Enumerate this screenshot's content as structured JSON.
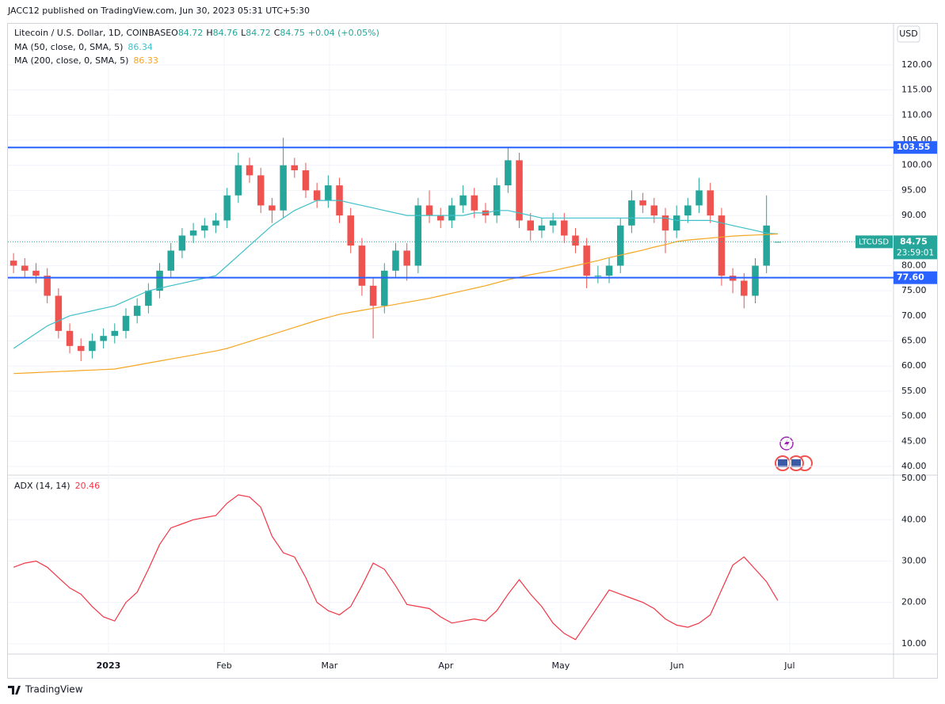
{
  "publisher": "JACC12 published on TradingView.com, Jun 30, 2023 05:31 UTC+5:30",
  "brand": "TradingView",
  "chart_data": [
    {
      "type": "candlestick",
      "title": "Litecoin / U.S. Dollar, 1D, COINBASE",
      "ohlc_prefixes": [
        "O",
        "H",
        "L",
        "C"
      ],
      "change": "+0.04 (+0.05%)",
      "currency": "USD",
      "up_color": "#26a69a",
      "down_color": "#ef5350",
      "candles": {
        "open": [
          81,
          80,
          79,
          78,
          74,
          67,
          64,
          63,
          65,
          66,
          67,
          70,
          72,
          75,
          79,
          83,
          86,
          87,
          88,
          89,
          94,
          100,
          98,
          92,
          91,
          100,
          99,
          95,
          93,
          96,
          90,
          84,
          76,
          72,
          79,
          83,
          80,
          92,
          90,
          89,
          92,
          94,
          91,
          90,
          96,
          101,
          89,
          87,
          88,
          89,
          86,
          84,
          78,
          78,
          80,
          88,
          93,
          92,
          90,
          87,
          90,
          92,
          95,
          90,
          78,
          77,
          74,
          80,
          84.72
        ],
        "high": [
          82.5,
          81.5,
          80.5,
          79.5,
          75.5,
          68.5,
          65.5,
          66.5,
          67.5,
          68.5,
          71.5,
          73.5,
          76.5,
          80.5,
          84.5,
          87.5,
          88.5,
          89.5,
          90.5,
          95.5,
          102.5,
          101.5,
          99.5,
          93.5,
          105.5,
          101.5,
          100.5,
          96.5,
          98,
          97.5,
          91.5,
          85.5,
          77.5,
          80.5,
          84.5,
          84.5,
          93.5,
          95,
          91.5,
          93.5,
          96,
          95.5,
          92.5,
          97.5,
          103.5,
          102.5,
          90.5,
          89.5,
          90.5,
          90.5,
          87.5,
          85.5,
          80,
          81.5,
          89.5,
          95,
          94.5,
          93.5,
          91.5,
          92,
          93.5,
          97.5,
          96.5,
          91.5,
          79.5,
          78.5,
          81.5,
          94,
          84.76
        ],
        "low": [
          78.5,
          77.5,
          76.5,
          72.5,
          65.5,
          62.5,
          61,
          61.5,
          63.5,
          64.5,
          65.5,
          68.5,
          70.5,
          73.5,
          77.5,
          81.5,
          84.5,
          85.5,
          86.5,
          87.5,
          92.5,
          96.5,
          90.5,
          88.5,
          89.5,
          97.5,
          93.5,
          91.5,
          91.5,
          88.5,
          82.5,
          74,
          65.5,
          70.5,
          77.5,
          77,
          78.5,
          88.5,
          87.5,
          87.5,
          90.5,
          89.5,
          88.5,
          88.5,
          94.5,
          87.5,
          85,
          85.5,
          86.5,
          84.5,
          82.5,
          75.5,
          76.5,
          76.5,
          78.5,
          86.5,
          90.5,
          88.5,
          82.5,
          85.5,
          88.5,
          90.5,
          88.5,
          76,
          74.5,
          71.5,
          72.5,
          78.5,
          84.72
        ],
        "close": [
          80,
          79,
          78,
          74,
          67,
          64,
          63,
          65,
          66,
          67,
          70,
          72,
          75,
          79,
          83,
          86,
          87,
          88,
          89,
          94,
          100,
          98,
          92,
          91,
          100,
          99,
          95,
          93,
          96,
          90,
          84,
          76,
          72,
          79,
          83,
          80,
          92,
          90,
          89,
          92,
          94,
          91,
          90,
          96,
          101,
          89,
          87,
          88,
          89,
          86,
          84,
          78,
          78,
          80,
          88,
          93,
          92,
          90,
          87,
          90,
          92,
          95,
          90,
          78,
          77,
          74,
          80,
          88,
          84.75
        ]
      },
      "series": [
        {
          "name": "MA (50, close, 0, SMA, 5)",
          "color": "#3fbfc9",
          "values": [
            63.5,
            65,
            66.5,
            68,
            69,
            70,
            70.5,
            71,
            71.5,
            72,
            73,
            74,
            75,
            75.5,
            76,
            76.5,
            77,
            77.5,
            78,
            80,
            82,
            84,
            86,
            88,
            89.5,
            91,
            92,
            93,
            93,
            93,
            92.5,
            92,
            91.5,
            91,
            90.5,
            90,
            90,
            90,
            90,
            90,
            90,
            90.5,
            90.5,
            91,
            91,
            90.5,
            90,
            89.5,
            89.5,
            89.5,
            89.5,
            89.5,
            89.5,
            89.5,
            89.5,
            89.5,
            89.5,
            89.5,
            89.5,
            89,
            89,
            89,
            89,
            88.5,
            88,
            87.5,
            87,
            86.5,
            86.34
          ]
        },
        {
          "name": "MA (200, close, 0, SMA, 5)",
          "color": "#f5a623",
          "values": [
            58.5,
            58.6,
            58.7,
            58.8,
            58.9,
            59,
            59.1,
            59.2,
            59.3,
            59.4,
            59.8,
            60.2,
            60.6,
            61,
            61.4,
            61.8,
            62.2,
            62.6,
            63,
            63.5,
            64.2,
            64.9,
            65.6,
            66.3,
            67,
            67.7,
            68.4,
            69.1,
            69.7,
            70.3,
            70.7,
            71.1,
            71.5,
            71.9,
            72.3,
            72.7,
            73.1,
            73.5,
            74,
            74.5,
            75,
            75.5,
            76,
            76.6,
            77.2,
            77.7,
            78.2,
            78.6,
            79,
            79.5,
            80,
            80.5,
            81,
            81.6,
            82.1,
            82.6,
            83.1,
            83.7,
            84.2,
            84.8,
            85.1,
            85.3,
            85.5,
            85.7,
            85.9,
            86,
            86.1,
            86.2,
            86.33
          ]
        }
      ],
      "hlines": [
        {
          "value": 103.55,
          "color": "#2962ff"
        },
        {
          "value": 77.6,
          "label": "77.60",
          "color": "#2962ff"
        }
      ],
      "last_price": {
        "symbol": "LTCUSD",
        "countdown": "23:59:01",
        "color": "#26a69a"
      },
      "xlim": [
        -0.5,
        78.3
      ],
      "ylim": [
        38.26,
        128.2
      ],
      "yticks": [
        {
          "value": 40,
          "label": "40.00"
        },
        {
          "value": 45,
          "label": "45.00"
        },
        {
          "value": 50,
          "label": "50.00"
        },
        {
          "value": 55,
          "label": "55.00"
        },
        {
          "value": 60,
          "label": "60.00"
        },
        {
          "value": 65,
          "label": "65.00"
        },
        {
          "value": 70,
          "label": "70.00"
        },
        {
          "value": 75,
          "label": "75.00"
        },
        {
          "value": 80,
          "label": "80.00"
        },
        {
          "value": 85,
          "label": "85.00"
        },
        {
          "value": 90,
          "label": "90.00"
        },
        {
          "value": 95,
          "label": "95.00"
        },
        {
          "value": 100,
          "label": "100.00"
        },
        {
          "value": 105,
          "label": "105.00"
        },
        {
          "value": 110,
          "label": "110.00"
        },
        {
          "value": 115,
          "label": "115.00"
        },
        {
          "value": 120,
          "label": "120.00"
        }
      ],
      "grid": true
    },
    {
      "type": "line",
      "series": [
        {
          "name": "ADX (14, 14)",
          "color": "#f23645",
          "values": [
            28.5,
            29.5,
            30,
            28.5,
            26,
            23.5,
            22,
            19,
            16.5,
            15.5,
            20,
            22.5,
            28,
            34,
            38,
            39,
            40,
            40.5,
            41,
            44,
            46,
            45.5,
            43,
            36,
            32,
            31,
            26,
            20,
            18,
            17,
            19,
            24,
            29.5,
            28,
            24,
            19.5,
            19,
            18.5,
            16.5,
            15,
            15.5,
            16,
            15.5,
            18,
            22,
            25.5,
            22,
            19,
            15,
            12.5,
            11,
            15,
            19,
            23,
            22,
            21,
            20,
            18.5,
            16,
            14.5,
            14,
            15,
            17,
            23,
            29,
            31,
            28,
            25,
            20.46
          ]
        }
      ],
      "xlim": [
        -0.5,
        78.3
      ],
      "ylim": [
        7.5,
        50.77
      ],
      "yticks": [
        {
          "value": 10,
          "label": "10.00"
        },
        {
          "value": 20,
          "label": "20.00"
        },
        {
          "value": 30,
          "label": "30.00"
        },
        {
          "value": 40,
          "label": "40.00"
        },
        {
          "value": 50,
          "label": "50.00"
        }
      ],
      "xticks": [
        {
          "value": 8.45,
          "label": "2023"
        },
        {
          "value": 18.74,
          "label": "Feb"
        },
        {
          "value": 28.11,
          "label": "Mar"
        },
        {
          "value": 38.47,
          "label": "Apr"
        },
        {
          "value": 48.69,
          "label": "May"
        },
        {
          "value": 59.05,
          "label": "Jun"
        },
        {
          "value": 69.06,
          "label": "Jul"
        }
      ],
      "grid": true
    }
  ]
}
